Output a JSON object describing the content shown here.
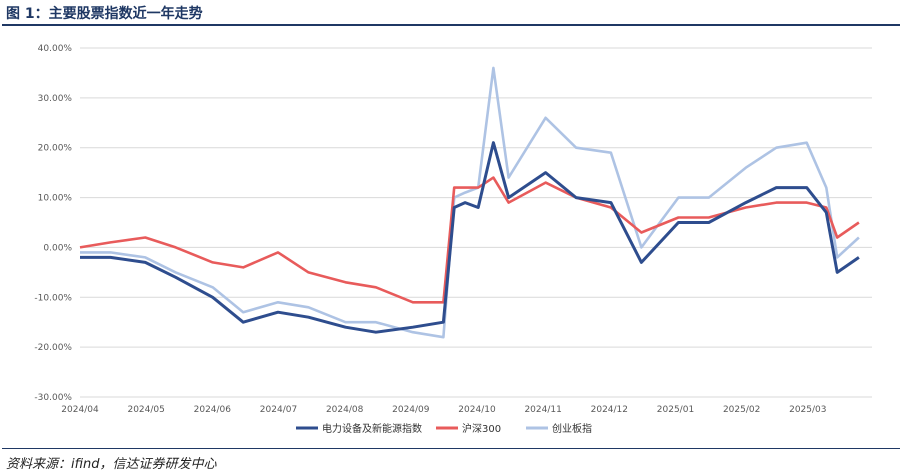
{
  "header": {
    "title": "图 1：主要股票指数近一年走势"
  },
  "footer": {
    "source": "资料来源：ifind，信达证券研发中心"
  },
  "chart_data": {
    "type": "line",
    "title": "",
    "xlabel": "",
    "ylabel": "",
    "ylim": [
      -30,
      40
    ],
    "yticks": [
      "-30.00%",
      "-20.00%",
      "-10.00%",
      "0.00%",
      "10.00%",
      "20.00%",
      "30.00%",
      "40.00%"
    ],
    "xticks": [
      "2024/04",
      "2024/05",
      "2024/06",
      "2024/07",
      "2024/08",
      "2024/09",
      "2024/10",
      "2024/11",
      "2024/12",
      "2025/01",
      "2025/02",
      "2025/03"
    ],
    "grid": "horizontal",
    "legend_position": "bottom",
    "x": [
      "2024/04/01",
      "2024/04/15",
      "2024/05/01",
      "2024/05/15",
      "2024/06/01",
      "2024/06/15",
      "2024/07/01",
      "2024/07/15",
      "2024/08/01",
      "2024/08/15",
      "2024/09/01",
      "2024/09/15",
      "2024/09/20",
      "2024/09/25",
      "2024/10/01",
      "2024/10/08",
      "2024/10/15",
      "2024/11/01",
      "2024/11/15",
      "2024/12/01",
      "2024/12/15",
      "2025/01/01",
      "2025/01/15",
      "2025/02/01",
      "2025/02/15",
      "2025/03/01",
      "2025/03/10",
      "2025/03/15",
      "2025/03/25"
    ],
    "series": [
      {
        "name": "电力设备及新能源指数",
        "color": "#2e4d8e",
        "values": [
          -2,
          -2,
          -3,
          -6,
          -10,
          -15,
          -13,
          -14,
          -16,
          -17,
          -16,
          -15,
          8,
          9,
          8,
          21,
          10,
          15,
          10,
          9,
          -3,
          5,
          5,
          9,
          12,
          12,
          7,
          -5,
          -2
        ]
      },
      {
        "name": "沪深300",
        "color": "#e85b5b",
        "values": [
          0,
          1,
          2,
          0,
          -3,
          -4,
          -1,
          -5,
          -7,
          -8,
          -11,
          -11,
          12,
          12,
          12,
          14,
          9,
          13,
          10,
          8,
          3,
          6,
          6,
          8,
          9,
          9,
          8,
          2,
          5
        ]
      },
      {
        "name": "创业板指",
        "color": "#aec3e4",
        "values": [
          -1,
          -1,
          -2,
          -5,
          -8,
          -13,
          -11,
          -12,
          -15,
          -15,
          -17,
          -18,
          10,
          11,
          12,
          36,
          14,
          26,
          20,
          19,
          0,
          10,
          10,
          16,
          20,
          21,
          12,
          -2,
          2
        ]
      }
    ]
  }
}
